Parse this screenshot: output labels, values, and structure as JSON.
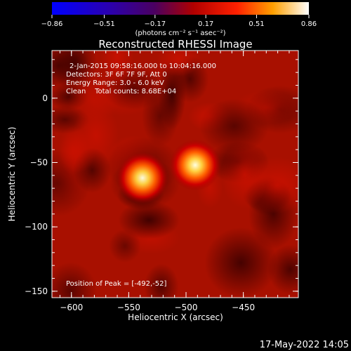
{
  "chart_data": {
    "type": "heatmap",
    "title": "Reconstructed RHESSI Image",
    "xlabel": "Heliocentric X (arcsec)",
    "ylabel": "Heliocentric Y (arcsec)",
    "xlim": [
      -617,
      -402
    ],
    "ylim": [
      -155,
      37
    ],
    "x_ticks": [
      -600,
      -550,
      -500,
      -450
    ],
    "y_ticks": [
      0,
      -50,
      -100,
      -150
    ],
    "x_tick_labels": [
      "−600",
      "−550",
      "−500",
      "−450"
    ],
    "y_tick_labels": [
      "0",
      "−50",
      "−100",
      "−150"
    ],
    "colorbar": {
      "min": -0.86,
      "max": 0.86,
      "ticks": [
        -0.86,
        -0.51,
        -0.17,
        0.17,
        0.51,
        0.86
      ],
      "tick_labels": [
        "−0.86",
        "−0.51",
        "−0.17",
        "0.17",
        "0.51",
        "0.86"
      ],
      "unit_label": "(photons cm⁻² s⁻¹ asec⁻²)",
      "colors": [
        "#0000ff",
        "#4b0082",
        "#8b0000",
        "#ff0000",
        "#ffa500",
        "#ffffff"
      ]
    },
    "sources": [
      {
        "x": -538,
        "y": -62,
        "peak": 0.8,
        "sigma": 7
      },
      {
        "x": -492,
        "y": -52,
        "peak": 0.86,
        "sigma": 7
      }
    ],
    "background_level": 0.17,
    "annotations": [
      "2-Jan-2015 09:58:16.000 to 10:04:16.000",
      "Detectors: 3F 6F 7F 9F, Att 0",
      "Energy Range: 3.0 - 6.0 keV",
      "Clean    Total counts: 8.68E+04"
    ],
    "peak_label": "Position of Peak = [-492,-52]"
  },
  "footer_date": "17-May-2022 14:05"
}
